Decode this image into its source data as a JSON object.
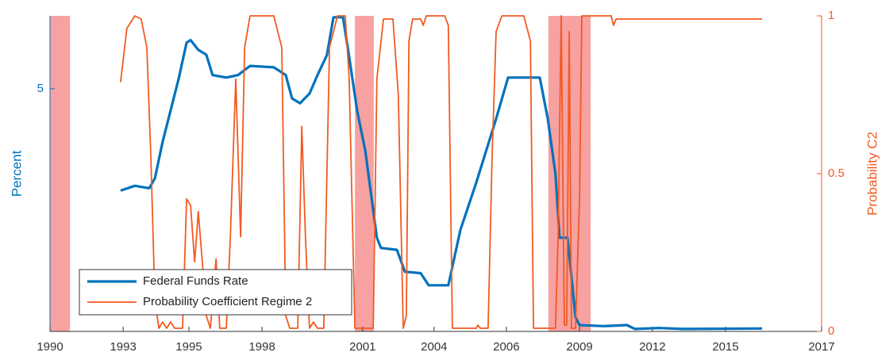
{
  "chart_data": {
    "type": "line",
    "y_label": "Percent",
    "y2_label": "Probability C2",
    "xlim": [
      1990,
      2017
    ],
    "xticks": [
      {
        "value": 1990,
        "label": "1990"
      },
      {
        "value": 1992.56,
        "label": "1993"
      },
      {
        "value": 1994.86,
        "label": "1995"
      },
      {
        "value": 1997.42,
        "label": "1998"
      },
      {
        "value": 2000.94,
        "label": "2001"
      },
      {
        "value": 2003.44,
        "label": "2004"
      },
      {
        "value": 2005.97,
        "label": "2006"
      },
      {
        "value": 2008.53,
        "label": "2009"
      },
      {
        "value": 2011.08,
        "label": "2012"
      },
      {
        "value": 2013.64,
        "label": "2015"
      },
      {
        "value": 2017,
        "label": "2017"
      }
    ],
    "ylim": [
      0,
      6.5
    ],
    "yticks": [
      5
    ],
    "y2lim": [
      0,
      1
    ],
    "y2ticks": [
      0,
      0.5,
      1
    ],
    "recession_color": "#f7a1a1",
    "recessions": [
      [
        1990.0,
        1990.7
      ],
      [
        2000.67,
        2001.33
      ],
      [
        2007.44,
        2008.92
      ]
    ],
    "legend": "lower left",
    "series": [
      {
        "name": "Federal Funds Rate",
        "color": "#0072bd",
        "axis": "y",
        "x": [
          1992.47,
          1992.97,
          1993.47,
          1993.67,
          1993.94,
          1994.22,
          1994.5,
          1994.78,
          1994.92,
          1995.19,
          1995.47,
          1995.69,
          1996.17,
          1996.58,
          1997.0,
          1997.83,
          1998.25,
          1998.47,
          1998.75,
          1999.08,
          1999.36,
          1999.69,
          1999.92,
          2000.25,
          2000.42,
          2000.75,
          2001.03,
          2001.44,
          2001.58,
          2002.14,
          2002.42,
          2002.97,
          2003.25,
          2003.94,
          2004.36,
          2004.92,
          2005.61,
          2006.03,
          2007.14,
          2007.42,
          2007.69,
          2007.83,
          2008.11,
          2008.39,
          2008.53,
          2009.36,
          2010.19,
          2010.47,
          2011.31,
          2012.14,
          2014.92
        ],
        "values": [
          2.9,
          3.0,
          2.95,
          3.15,
          3.9,
          4.55,
          5.2,
          5.95,
          6.0,
          5.8,
          5.7,
          5.28,
          5.23,
          5.28,
          5.47,
          5.44,
          5.28,
          4.8,
          4.7,
          4.9,
          5.28,
          5.69,
          6.47,
          6.47,
          5.85,
          4.54,
          3.73,
          1.93,
          1.72,
          1.68,
          1.23,
          1.2,
          0.95,
          0.95,
          2.09,
          3.07,
          4.38,
          5.23,
          5.23,
          4.38,
          3.24,
          1.93,
          1.93,
          0.29,
          0.13,
          0.11,
          0.13,
          0.05,
          0.07,
          0.05,
          0.06
        ]
      },
      {
        "name": "Probability Coefficient Regime 2",
        "color": "#f25a22",
        "axis": "y2",
        "x": [
          1992.47,
          1992.69,
          1992.97,
          1993.19,
          1993.39,
          1993.53,
          1993.67,
          1993.81,
          1993.94,
          1994.08,
          1994.22,
          1994.36,
          1994.64,
          1994.78,
          1994.92,
          1995.06,
          1995.19,
          1995.33,
          1995.47,
          1995.61,
          1995.81,
          1995.94,
          1996.17,
          1996.31,
          1996.5,
          1996.67,
          1996.81,
          1997.0,
          1997.83,
          1998.11,
          1998.25,
          1998.39,
          1998.67,
          1998.81,
          1998.94,
          1999.08,
          1999.22,
          1999.36,
          1999.58,
          1999.78,
          2000.06,
          2000.33,
          2000.47,
          2000.67,
          2001.31,
          2001.44,
          2001.67,
          2002.0,
          2002.19,
          2002.36,
          2002.47,
          2002.56,
          2002.69,
          2002.97,
          2003.06,
          2003.17,
          2003.81,
          2003.94,
          2004.08,
          2004.92,
          2004.97,
          2005.06,
          2005.33,
          2005.47,
          2005.61,
          2005.81,
          2006.58,
          2006.81,
          2006.92,
          2007.69,
          2007.78,
          2007.89,
          2008.0,
          2008.08,
          2008.17,
          2008.25,
          2008.39,
          2008.53,
          2008.61,
          2008.81,
          2009.64,
          2009.72,
          2009.81,
          2014.92
        ],
        "values": [
          0.79,
          0.96,
          1.0,
          0.99,
          0.9,
          0.55,
          0.1,
          0.01,
          0.03,
          0.01,
          0.03,
          0.01,
          0.01,
          0.42,
          0.4,
          0.22,
          0.38,
          0.22,
          0.05,
          0.01,
          0.23,
          0.01,
          0.01,
          0.3,
          0.8,
          0.3,
          0.9,
          1.0,
          1.0,
          0.9,
          0.05,
          0.01,
          0.01,
          0.65,
          0.3,
          0.01,
          0.03,
          0.01,
          0.01,
          0.9,
          1.0,
          1.0,
          0.8,
          0.01,
          0.01,
          0.8,
          0.99,
          0.99,
          0.75,
          0.01,
          0.05,
          0.92,
          0.99,
          0.99,
          0.97,
          1.0,
          1.0,
          0.97,
          0.01,
          0.01,
          0.02,
          0.01,
          0.01,
          0.55,
          0.95,
          1.0,
          1.0,
          0.92,
          0.01,
          0.01,
          0.3,
          1.0,
          0.02,
          0.02,
          0.95,
          0.01,
          0.01,
          0.42,
          1.0,
          1.0,
          1.0,
          0.97,
          0.99,
          0.99
        ]
      }
    ]
  }
}
